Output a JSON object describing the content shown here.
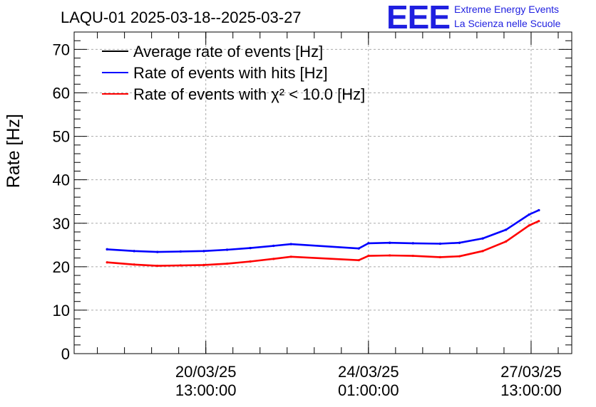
{
  "chart_data": {
    "type": "line",
    "title": "LAQU-01 2025-03-18--2025-03-27",
    "ylabel": "Rate [Hz]",
    "xlabel": "",
    "ylim": [
      0,
      74
    ],
    "yticks": [
      0,
      10,
      20,
      30,
      40,
      50,
      60,
      70
    ],
    "xticks": [
      {
        "x": "2025-03-20 13:00:00",
        "line1": "20/03/25",
        "line2": "13:00:00"
      },
      {
        "x": "2025-03-24 01:00:00",
        "line1": "24/03/25",
        "line2": "01:00:00"
      },
      {
        "x": "2025-03-27 13:00:00",
        "line1": "27/03/25",
        "line2": "13:00:00"
      }
    ],
    "xlim": [
      "2025-03-17 17:00:00",
      "2025-03-28 10:00:00"
    ],
    "grid": true,
    "legend_position": "top-left",
    "x": [
      "2025-03-18 10:00",
      "2025-03-19 00:00",
      "2025-03-19 12:00",
      "2025-03-20 00:00",
      "2025-03-20 12:00",
      "2025-03-21 00:00",
      "2025-03-21 12:00",
      "2025-03-22 00:00",
      "2025-03-22 09:00",
      "2025-03-23 20:00",
      "2025-03-24 01:00",
      "2025-03-24 12:00",
      "2025-03-25 00:00",
      "2025-03-25 14:00",
      "2025-03-26 00:00",
      "2025-03-26 12:00",
      "2025-03-27 00:00",
      "2025-03-27 12:00",
      "2025-03-27 17:00"
    ],
    "series": [
      {
        "name": "Average rate of events [Hz]",
        "color": "#000000",
        "values": [
          24,
          23.6,
          23.4,
          23.5,
          23.6,
          23.9,
          24.3,
          24.8,
          25.2,
          24.2,
          25.4,
          25.5,
          25.4,
          25.3,
          25.5,
          26.5,
          28.5,
          32,
          33
        ]
      },
      {
        "name": "Rate of events with hits [Hz]",
        "color": "#0000ff",
        "values": [
          24,
          23.6,
          23.4,
          23.5,
          23.6,
          23.9,
          24.3,
          24.8,
          25.2,
          24.2,
          25.4,
          25.5,
          25.4,
          25.3,
          25.5,
          26.5,
          28.5,
          32,
          33
        ]
      },
      {
        "name": "Rate of events with χ² < 10.0 [Hz]",
        "color": "#ff0000",
        "values": [
          21,
          20.5,
          20.2,
          20.3,
          20.4,
          20.7,
          21.2,
          21.8,
          22.3,
          21.5,
          22.5,
          22.6,
          22.5,
          22.2,
          22.4,
          23.6,
          25.8,
          29.5,
          30.5
        ]
      }
    ],
    "annotations": [
      "EEE",
      "Extreme Energy Events",
      "La Scienza nelle Scuole"
    ]
  }
}
